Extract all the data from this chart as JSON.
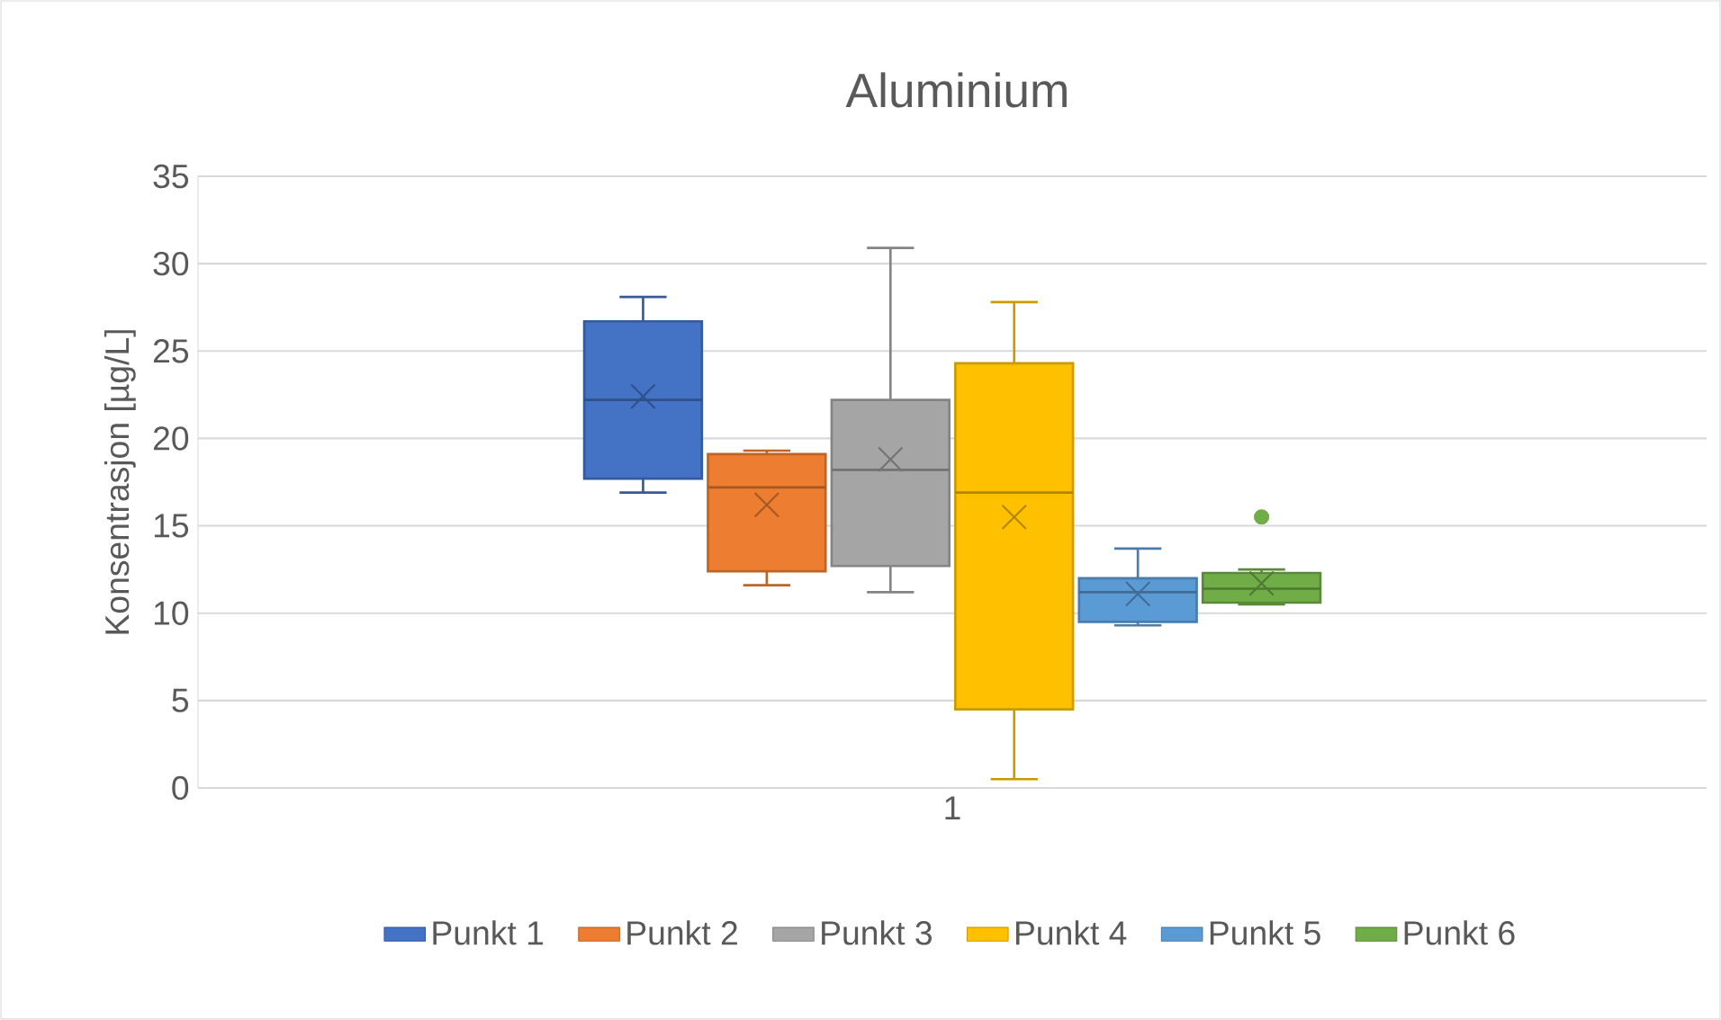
{
  "chart_data": {
    "type": "box",
    "title": "Aluminium",
    "ylabel": "Konsentrasjon [µg/L]",
    "categories": [
      "1"
    ],
    "ylim": [
      0,
      35
    ],
    "yticks": [
      0,
      5,
      10,
      15,
      20,
      25,
      30,
      35
    ],
    "grid": "y",
    "legend": "bottom",
    "series": [
      {
        "name": "Punkt 1",
        "color": "#4472c4",
        "boxes": [
          {
            "low": 16.9,
            "q1": 17.7,
            "median": 22.2,
            "q3": 26.7,
            "high": 28.1,
            "mean": 22.4
          }
        ]
      },
      {
        "name": "Punkt 2",
        "color": "#ed7d31",
        "boxes": [
          {
            "low": 11.6,
            "q1": 12.4,
            "median": 17.2,
            "q3": 19.1,
            "high": 19.3,
            "mean": 16.2
          }
        ]
      },
      {
        "name": "Punkt 3",
        "color": "#a5a5a5",
        "boxes": [
          {
            "low": 11.2,
            "q1": 12.7,
            "median": 18.2,
            "q3": 22.2,
            "high": 30.9,
            "mean": 18.8
          }
        ]
      },
      {
        "name": "Punkt 4",
        "color": "#ffc000",
        "boxes": [
          {
            "low": 0.5,
            "q1": 4.5,
            "median": 16.9,
            "q3": 24.3,
            "high": 27.8,
            "mean": 15.5
          }
        ]
      },
      {
        "name": "Punkt 5",
        "color": "#5b9bd5",
        "boxes": [
          {
            "low": 9.3,
            "q1": 9.5,
            "median": 11.2,
            "q3": 12.0,
            "high": 13.7,
            "mean": 11.1
          }
        ]
      },
      {
        "name": "Punkt 6",
        "color": "#70ad47",
        "boxes": [
          {
            "low": 10.5,
            "q1": 10.6,
            "median": 11.4,
            "q3": 12.3,
            "high": 12.5,
            "mean": 11.7,
            "outliers": [
              15.5
            ]
          }
        ]
      }
    ]
  }
}
